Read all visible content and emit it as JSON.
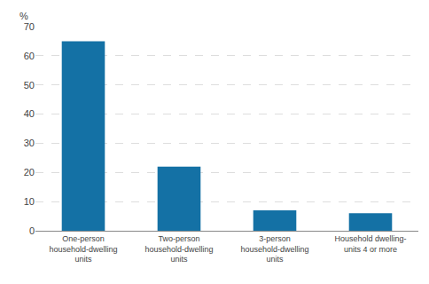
{
  "chart_data": {
    "type": "bar",
    "categories": [
      "One-person\nhousehold-dwelling\nunits",
      "Two-person\nhousehold-dwelling\nunits",
      "3-person\nhousehold-dwelling\nunits",
      "Household dwelling-\nunits 4 or more"
    ],
    "values": [
      65,
      22,
      7,
      6
    ],
    "color": "#1471a5",
    "ylabel": "%",
    "ylim": [
      0,
      70
    ],
    "yticks": [
      0,
      10,
      20,
      30,
      40,
      50,
      60,
      70
    ],
    "grid": true
  }
}
